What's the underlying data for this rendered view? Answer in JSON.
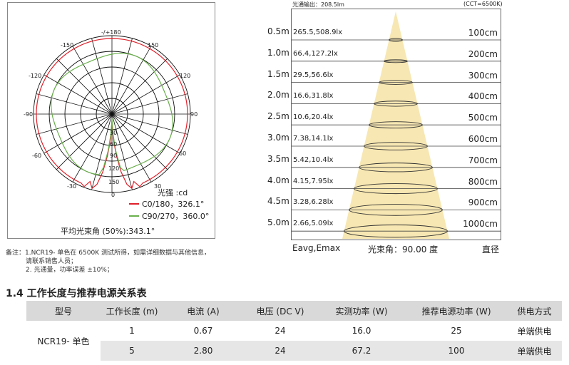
{
  "polar": {
    "angle_labels": {
      "top": "-/+180",
      "a150l": "-150",
      "a150r": "150",
      "a120l": "-120",
      "a120r": "120",
      "a90l": "-90",
      "a90r": "90",
      "a60l": "-60",
      "a60r": "60",
      "a30l": "-30",
      "a30r": "30",
      "bottom": "0"
    },
    "radial_labels": [
      "30",
      "60",
      "90",
      "120",
      "150"
    ],
    "bottom_radial": "0",
    "unit_label": "光强 :cd",
    "legend": [
      {
        "label": "C0/180，326.1°",
        "color": "#e0202a"
      },
      {
        "label": "C90/270，360.0°",
        "color": "#6ab04c"
      }
    ],
    "avg_beam": "平均光束角 (50%):343.1°"
  },
  "cone": {
    "flux_label": "光通输出：208.5lm",
    "cct_label": "(CCT=6500K)",
    "distances": [
      "0.5m",
      "1.0m",
      "1.5m",
      "2.0m",
      "2.5m",
      "3.0m",
      "3.5m",
      "4.0m",
      "4.5m",
      "5.0m"
    ],
    "lux": [
      "265.5,508.9lx",
      "66.4,127.2lx",
      "29.5,56.6lx",
      "16.6,31.8lx",
      "10.6,20.4lx",
      "7.38,14.1lx",
      "5.42,10.4lx",
      "4.15,7.95lx",
      "3.28,6.28lx",
      "2.66,5.09lx"
    ],
    "diameters": [
      "100cm",
      "200cm",
      "300cm",
      "400cm",
      "500cm",
      "600cm",
      "700cm",
      "800cm",
      "900cm",
      "1000cm"
    ],
    "footer_left": "Eavg,Emax",
    "footer_mid": "光束角：90.00 度",
    "footer_right": "直径",
    "colors": {
      "cone": "#f7e7b2"
    }
  },
  "notes": {
    "line1": "备注：1.NCR19- 单色在 6500K 测试所得，如需详细数据与其他信息，",
    "line2": "请联系销售人员；",
    "line3": "2. 光通量，功率误差 ±10%；"
  },
  "section_title": "1.4 工作长度与推荐电源关系表",
  "table": {
    "headers": [
      "型号",
      "工作长度 (m)",
      "电流 (A)",
      "电压 (DC V)",
      "实测功率 (W)",
      "推荐电源功率 (W)",
      "供电方式"
    ],
    "model": "NCR19- 单色",
    "rows": [
      [
        "1",
        "0.67",
        "24",
        "16.0",
        "25",
        "单端供电"
      ],
      [
        "5",
        "2.80",
        "24",
        "67.2",
        "100",
        "单端供电"
      ]
    ]
  }
}
